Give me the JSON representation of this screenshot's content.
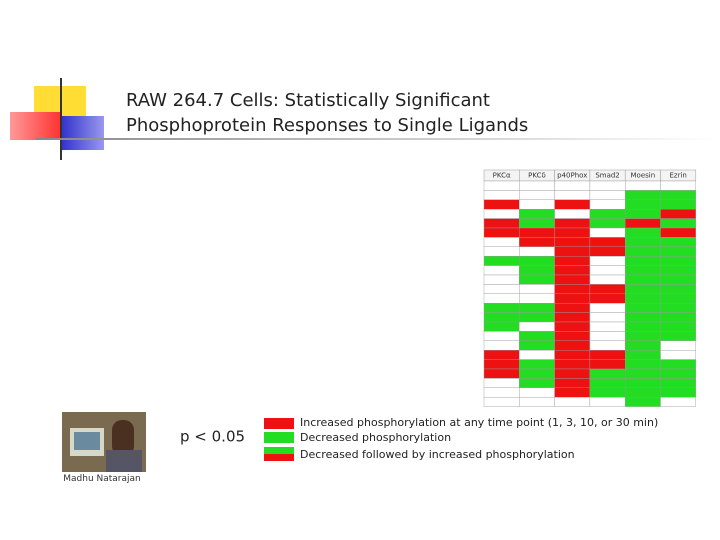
{
  "slide": {
    "title": [
      "RAW 264.7 Cells: Statistically Significant",
      "Phosphoprotein Responses to Single Ligands"
    ],
    "table": {
      "headers": [
        "PKCα",
        "PKCδ",
        "p40Phox",
        "Smad2",
        "Moesin",
        "Ezrin"
      ]
    },
    "threshold": "p < 0.05",
    "legend": [
      "Increased phosphorylation at any time point (1, 3, 10, or 30 min)",
      "Decreased phosphorylation",
      "Decreased followed by increased phosphorylation"
    ],
    "caption": "Madhu Natarajan"
  }
}
